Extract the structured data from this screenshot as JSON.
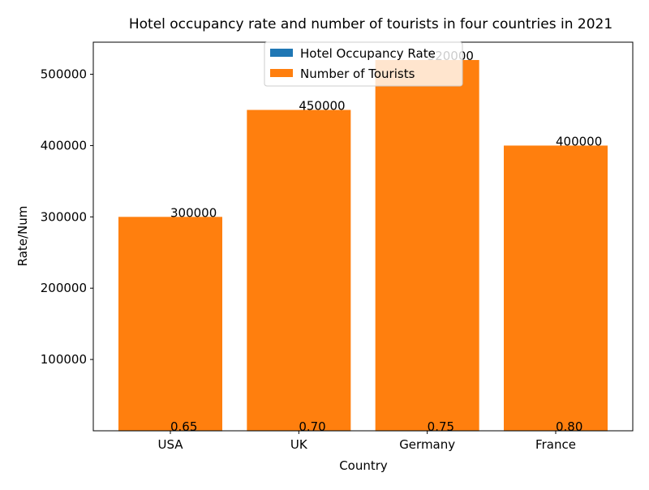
{
  "chart_data": {
    "type": "bar",
    "title": "Hotel occupancy rate and number of tourists in four countries in 2021",
    "xlabel": "Country",
    "ylabel": "Rate/Num",
    "categories": [
      "USA",
      "UK",
      "Germany",
      "France"
    ],
    "series": [
      {
        "name": "Hotel Occupancy Rate",
        "values": [
          0.65,
          0.7,
          0.75,
          0.8
        ],
        "labels": [
          "0.65",
          "0.70",
          "0.75",
          "0.80"
        ],
        "color": "#1f77b4"
      },
      {
        "name": "Number of Tourists",
        "values": [
          300000,
          450000,
          520000,
          400000
        ],
        "labels": [
          "300000",
          "450000",
          "520000",
          "400000"
        ],
        "color": "#ff7f0e"
      }
    ],
    "ylim": [
      0,
      545000
    ],
    "yticks": [
      100000,
      200000,
      300000,
      400000,
      500000
    ],
    "ytick_labels": [
      "100000",
      "200000",
      "300000",
      "400000",
      "500000"
    ],
    "grid": false,
    "legend_position": "top-center",
    "stacked": true
  }
}
